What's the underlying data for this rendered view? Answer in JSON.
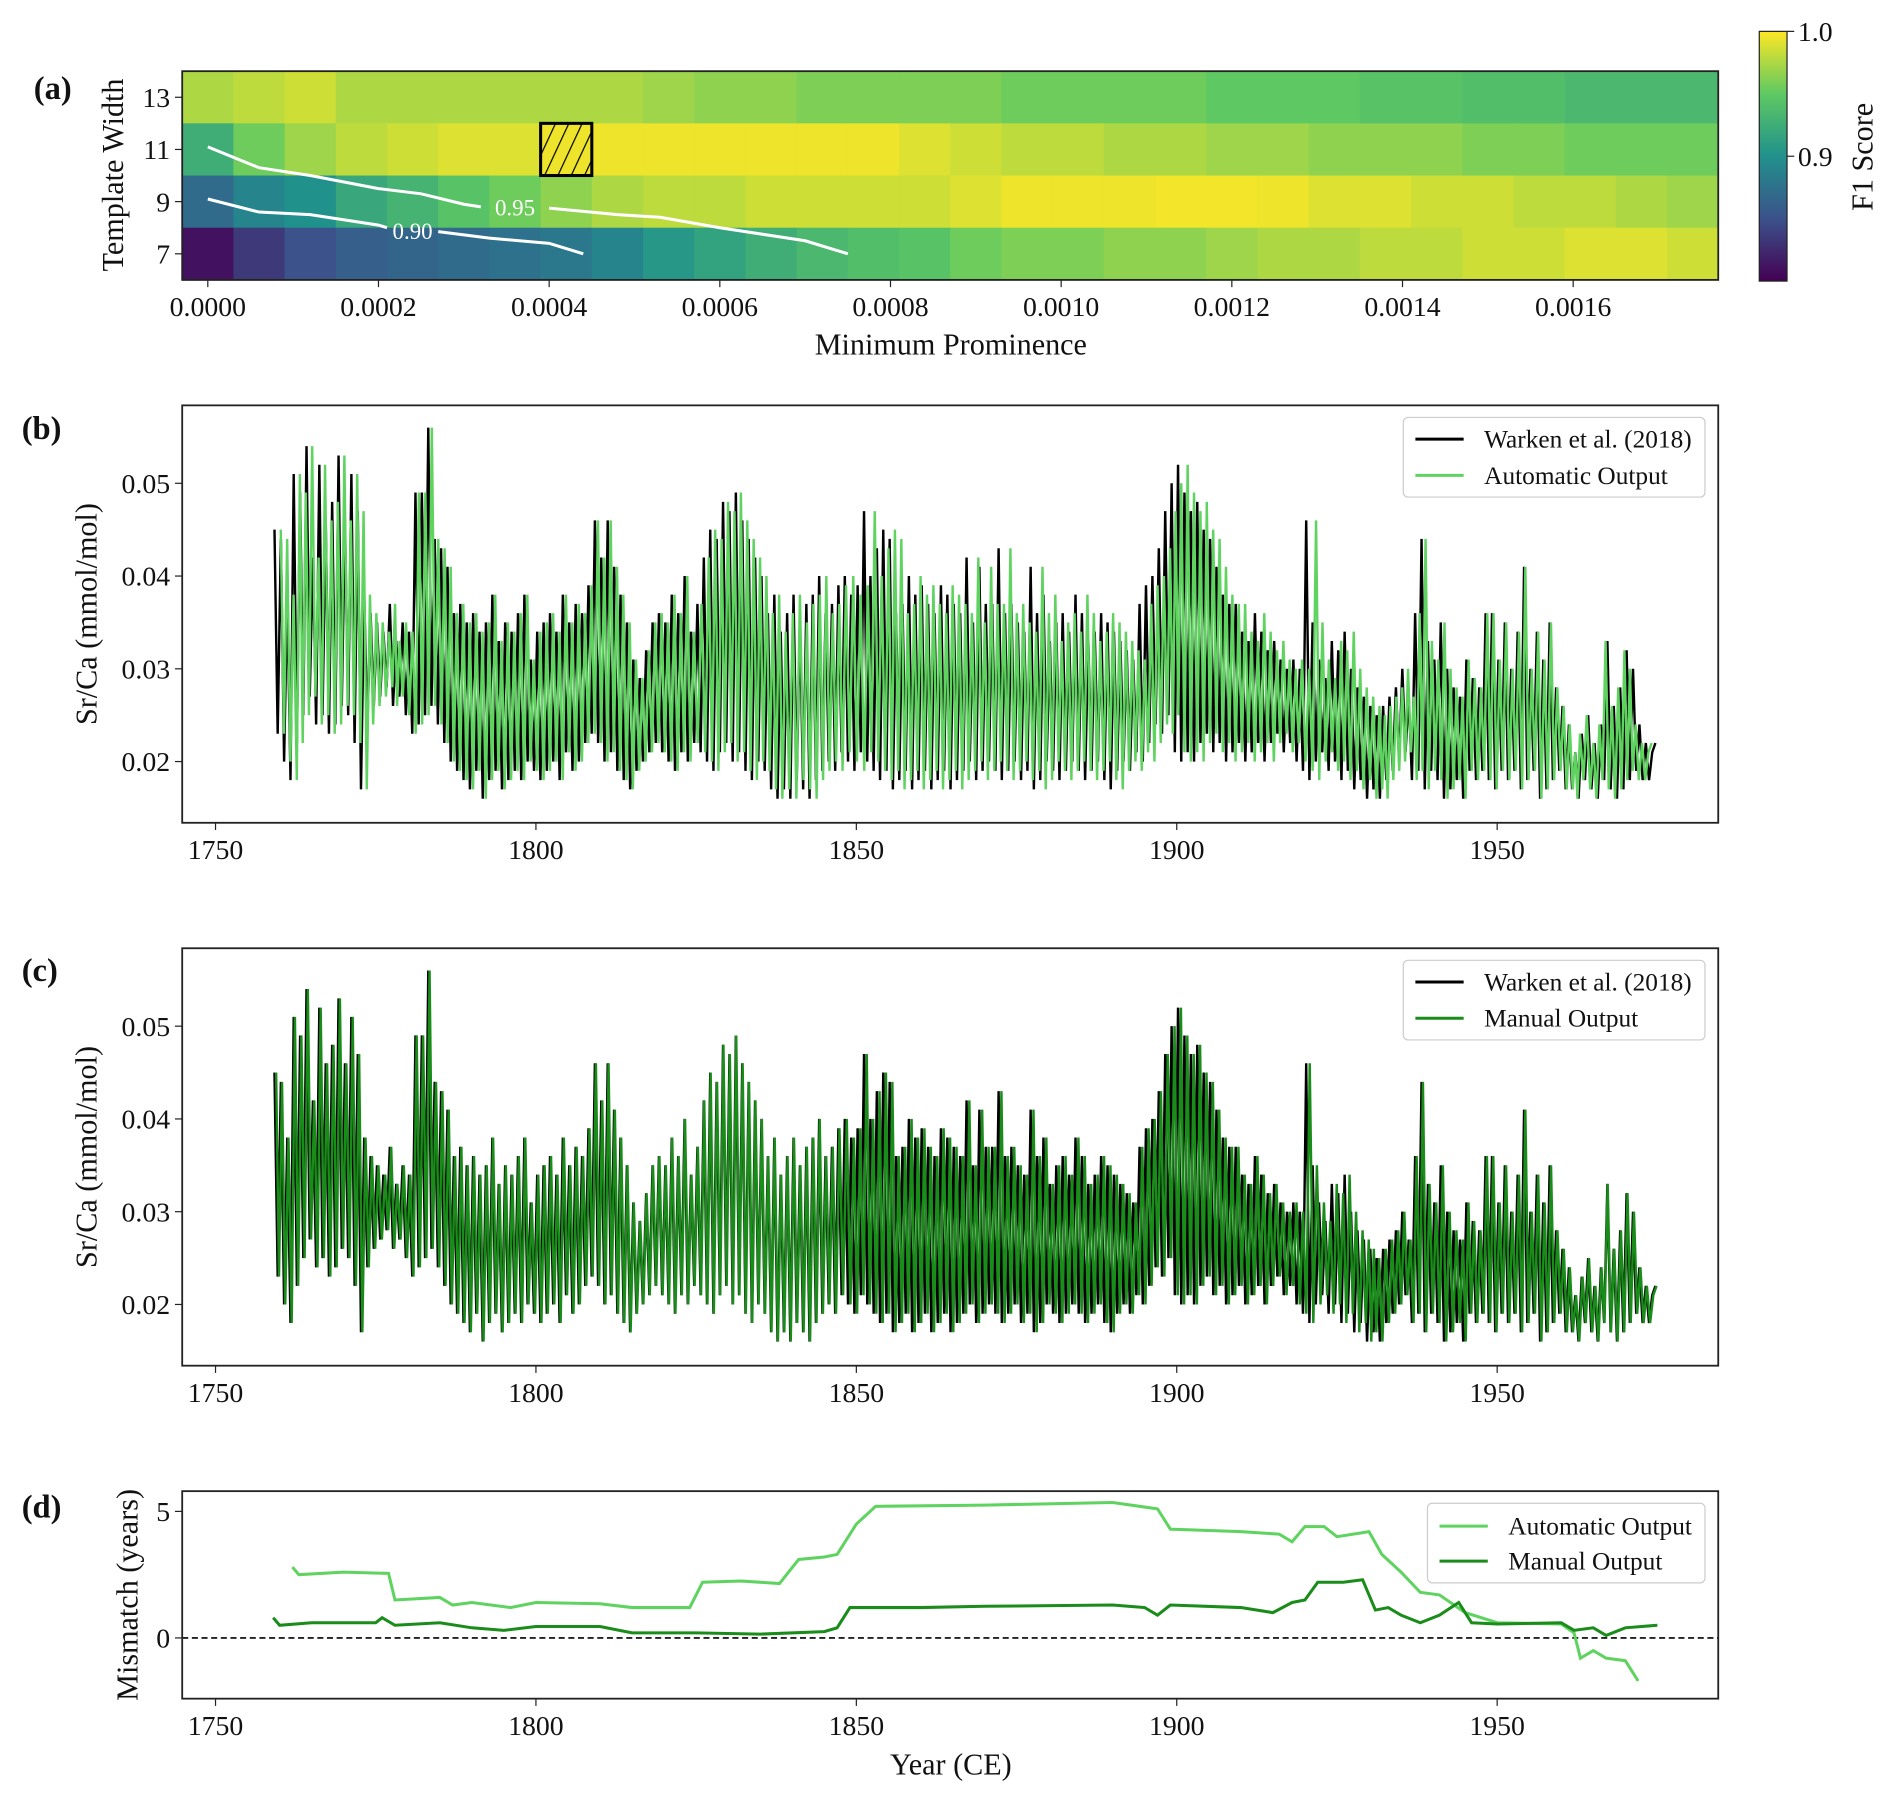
{
  "chart_data": [
    {
      "panel": "(a)",
      "type": "heatmap",
      "xlabel": "Minimum Prominence",
      "ylabel": "Template Width",
      "colorbar_label": "F1 Score",
      "colorbar_ticks": [
        "0.9",
        "1.0"
      ],
      "colorbar_tick_values": [
        0.9,
        1.0
      ],
      "color_range": [
        0.8,
        1.0
      ],
      "colormap": "viridis",
      "x_step": 6e-05,
      "xlim": [
        -3e-05,
        0.00177
      ],
      "ylim": [
        6,
        14
      ],
      "xticks": [
        0,
        0.0002,
        0.0004,
        0.0006,
        0.0008,
        0.001,
        0.0012,
        0.0014,
        0.0016
      ],
      "xtick_labels": [
        "0.0000",
        "0.0002",
        "0.0004",
        "0.0006",
        "0.0008",
        "0.0010",
        "0.0012",
        "0.0014",
        "0.0016"
      ],
      "rows": [
        13,
        11,
        9,
        7
      ],
      "ytick_labels": [
        "13",
        "11",
        "9",
        "7"
      ],
      "values": [
        [
          0.975,
          0.98,
          0.985,
          0.975,
          0.975,
          0.975,
          0.975,
          0.975,
          0.975,
          0.97,
          0.965,
          0.965,
          0.96,
          0.96,
          0.96,
          0.96,
          0.955,
          0.955,
          0.955,
          0.955,
          0.95,
          0.95,
          0.95,
          0.945,
          0.945,
          0.94,
          0.94,
          0.935,
          0.935,
          0.935
        ],
        [
          0.925,
          0.955,
          0.97,
          0.98,
          0.985,
          0.99,
          0.99,
          0.995,
          0.995,
          0.995,
          0.995,
          0.995,
          0.995,
          0.995,
          0.99,
          0.985,
          0.98,
          0.98,
          0.975,
          0.975,
          0.97,
          0.97,
          0.965,
          0.965,
          0.965,
          0.96,
          0.96,
          0.955,
          0.955,
          0.955
        ],
        [
          0.87,
          0.89,
          0.9,
          0.92,
          0.93,
          0.945,
          0.955,
          0.965,
          0.975,
          0.98,
          0.98,
          0.985,
          0.985,
          0.985,
          0.985,
          0.99,
          0.995,
          0.995,
          0.995,
          0.997,
          0.997,
          0.995,
          0.99,
          0.99,
          0.985,
          0.985,
          0.98,
          0.98,
          0.975,
          0.97
        ],
        [
          0.81,
          0.835,
          0.85,
          0.86,
          0.865,
          0.87,
          0.875,
          0.88,
          0.89,
          0.905,
          0.915,
          0.925,
          0.935,
          0.94,
          0.945,
          0.955,
          0.96,
          0.96,
          0.965,
          0.965,
          0.97,
          0.975,
          0.975,
          0.98,
          0.98,
          0.985,
          0.985,
          0.99,
          0.99,
          0.985
        ]
      ],
      "highlight_cell": {
        "x": 0.00042,
        "y": 11
      },
      "contours": [
        {
          "level": 0.95,
          "label": "0.95",
          "label_at": [
            0.00036,
            8.8
          ],
          "segments": [
            [
              [
                0,
                11.1
              ],
              [
                6e-05,
                10.3
              ],
              [
                0.00012,
                10.0
              ],
              [
                0.0002,
                9.5
              ],
              [
                0.00025,
                9.3
              ],
              [
                0.0003,
                8.9
              ],
              [
                0.00032,
                8.8
              ]
            ],
            [
              [
                0.0004,
                8.75
              ],
              [
                0.00048,
                8.5
              ],
              [
                0.00053,
                8.4
              ],
              [
                0.0006,
                8.0
              ],
              [
                0.0007,
                7.5
              ],
              [
                0.00075,
                7.0
              ]
            ]
          ]
        },
        {
          "level": 0.9,
          "label": "0.90",
          "label_at": [
            0.00024,
            7.9
          ],
          "segments": [
            [
              [
                0,
                9.1
              ],
              [
                6e-05,
                8.6
              ],
              [
                0.00012,
                8.5
              ],
              [
                0.0002,
                8.1
              ],
              [
                0.00021,
                8.0
              ]
            ],
            [
              [
                0.00027,
                7.85
              ],
              [
                0.00033,
                7.6
              ],
              [
                0.0004,
                7.4
              ],
              [
                0.00044,
                7.0
              ]
            ]
          ]
        }
      ]
    },
    {
      "panel": "(b)",
      "type": "line",
      "ylabel": "Sr/Ca (mmol/mol)",
      "xlim": [
        1744.8,
        1984.5
      ],
      "ylim": [
        0.0134,
        0.0584
      ],
      "xticks": [
        1750,
        1800,
        1850,
        1900,
        1950
      ],
      "xtick_labels": [
        "1750",
        "1800",
        "1850",
        "1900",
        "1950"
      ],
      "yticks": [
        0.02,
        0.03,
        0.04,
        0.05
      ],
      "ytick_labels": [
        "0.02",
        "0.03",
        "0.04",
        "0.05"
      ],
      "legend": [
        "Warken et al. (2018)",
        "Automatic Output"
      ],
      "legend_placement": "top-right",
      "colors": {
        "reference": "#000000",
        "output": "#5fd35f"
      },
      "note": "output series = reference series shifted in time by the mismatch of panel (d)"
    },
    {
      "panel": "(c)",
      "type": "line",
      "ylabel": "Sr/Ca (mmol/mol)",
      "xlim": [
        1744.8,
        1984.5
      ],
      "ylim": [
        0.0134,
        0.0584
      ],
      "xticks": [
        1750,
        1800,
        1850,
        1900,
        1950
      ],
      "xtick_labels": [
        "1750",
        "1800",
        "1850",
        "1900",
        "1950"
      ],
      "yticks": [
        0.02,
        0.03,
        0.04,
        0.05
      ],
      "ytick_labels": [
        "0.02",
        "0.03",
        "0.04",
        "0.05"
      ],
      "legend": [
        "Warken et al. (2018)",
        "Manual Output"
      ],
      "legend_placement": "top-right",
      "colors": {
        "reference": "#000000",
        "output": "#1a8c1a"
      }
    },
    {
      "panel": "(d)",
      "type": "line",
      "xlabel": "Year (CE)",
      "ylabel": "Mismatch (years)",
      "xlim": [
        1744.8,
        1984.5
      ],
      "ylim": [
        -2.4,
        5.8
      ],
      "xticks": [
        1750,
        1800,
        1850,
        1900,
        1950
      ],
      "xtick_labels": [
        "1750",
        "1800",
        "1850",
        "1900",
        "1950"
      ],
      "yticks": [
        0,
        5
      ],
      "ytick_labels": [
        "0",
        "5"
      ],
      "legend": [
        "Automatic Output",
        "Manual Output"
      ],
      "legend_placement": "top-right",
      "reference_line": 0,
      "series": [
        {
          "name": "Automatic Output",
          "color": "#5fd35f",
          "points": [
            [
              1762,
              2.8
            ],
            [
              1763,
              2.5
            ],
            [
              1770,
              2.6
            ],
            [
              1777,
              2.55
            ],
            [
              1778,
              1.5
            ],
            [
              1785,
              1.6
            ],
            [
              1787,
              1.3
            ],
            [
              1790,
              1.4
            ],
            [
              1796,
              1.2
            ],
            [
              1800,
              1.4
            ],
            [
              1810,
              1.35
            ],
            [
              1815,
              1.2
            ],
            [
              1824,
              1.2
            ],
            [
              1826,
              2.2
            ],
            [
              1832,
              2.25
            ],
            [
              1838,
              2.15
            ],
            [
              1841,
              3.1
            ],
            [
              1845,
              3.2
            ],
            [
              1847,
              3.3
            ],
            [
              1850,
              4.5
            ],
            [
              1853,
              5.2
            ],
            [
              1870,
              5.25
            ],
            [
              1890,
              5.35
            ],
            [
              1897,
              5.1
            ],
            [
              1899,
              4.3
            ],
            [
              1910,
              4.2
            ],
            [
              1916,
              4.1
            ],
            [
              1918,
              3.8
            ],
            [
              1920,
              4.4
            ],
            [
              1923,
              4.4
            ],
            [
              1925,
              4.0
            ],
            [
              1930,
              4.2
            ],
            [
              1932,
              3.3
            ],
            [
              1935,
              2.6
            ],
            [
              1938,
              1.8
            ],
            [
              1941,
              1.7
            ],
            [
              1945,
              1.0
            ],
            [
              1950,
              0.6
            ],
            [
              1960,
              0.55
            ],
            [
              1962,
              0.2
            ],
            [
              1963,
              -0.8
            ],
            [
              1965,
              -0.5
            ],
            [
              1967,
              -0.8
            ],
            [
              1970,
              -0.9
            ],
            [
              1972,
              -1.7
            ]
          ]
        },
        {
          "name": "Manual Output",
          "color": "#1a8c1a",
          "points": [
            [
              1759,
              0.8
            ],
            [
              1760,
              0.5
            ],
            [
              1765,
              0.6
            ],
            [
              1775,
              0.6
            ],
            [
              1776,
              0.8
            ],
            [
              1778,
              0.5
            ],
            [
              1785,
              0.6
            ],
            [
              1790,
              0.4
            ],
            [
              1795,
              0.3
            ],
            [
              1800,
              0.45
            ],
            [
              1810,
              0.45
            ],
            [
              1815,
              0.2
            ],
            [
              1825,
              0.2
            ],
            [
              1835,
              0.15
            ],
            [
              1845,
              0.25
            ],
            [
              1847,
              0.4
            ],
            [
              1849,
              1.2
            ],
            [
              1860,
              1.2
            ],
            [
              1870,
              1.25
            ],
            [
              1890,
              1.3
            ],
            [
              1895,
              1.2
            ],
            [
              1897,
              0.9
            ],
            [
              1899,
              1.3
            ],
            [
              1910,
              1.2
            ],
            [
              1915,
              1.0
            ],
            [
              1918,
              1.4
            ],
            [
              1920,
              1.5
            ],
            [
              1922,
              2.2
            ],
            [
              1926,
              2.2
            ],
            [
              1929,
              2.3
            ],
            [
              1931,
              1.1
            ],
            [
              1933,
              1.2
            ],
            [
              1935,
              0.9
            ],
            [
              1938,
              0.6
            ],
            [
              1941,
              0.9
            ],
            [
              1944,
              1.4
            ],
            [
              1946,
              0.6
            ],
            [
              1950,
              0.55
            ],
            [
              1960,
              0.6
            ],
            [
              1962,
              0.3
            ],
            [
              1965,
              0.4
            ],
            [
              1967,
              0.1
            ],
            [
              1970,
              0.4
            ],
            [
              1975,
              0.5
            ]
          ]
        }
      ]
    }
  ],
  "reference_series": {
    "name": "Warken et al. (2018)",
    "start_year": 1759,
    "annual_peaks": [
      0.045,
      0.044,
      0.038,
      0.051,
      0.049,
      0.054,
      0.042,
      0.052,
      0.046,
      0.048,
      0.053,
      0.046,
      0.051,
      0.047,
      0.038,
      0.036,
      0.035,
      0.034,
      0.037,
      0.033,
      0.035,
      0.034,
      0.049,
      0.049,
      0.056,
      0.044,
      0.043,
      0.041,
      0.036,
      0.037,
      0.035,
      0.036,
      0.034,
      0.035,
      0.038,
      0.033,
      0.035,
      0.034,
      0.036,
      0.038,
      0.031,
      0.034,
      0.035,
      0.036,
      0.034,
      0.038,
      0.035,
      0.037,
      0.036,
      0.039,
      0.046,
      0.042,
      0.046,
      0.041,
      0.038,
      0.035,
      0.031,
      0.029,
      0.032,
      0.035,
      0.036,
      0.035,
      0.038,
      0.036,
      0.04,
      0.034,
      0.037,
      0.042,
      0.045,
      0.044,
      0.048,
      0.047,
      0.049,
      0.046,
      0.044,
      0.042,
      0.04,
      0.036,
      0.038,
      0.034,
      0.036,
      0.038,
      0.035,
      0.037,
      0.038,
      0.04,
      0.036,
      0.037,
      0.039,
      0.04,
      0.038,
      0.039,
      0.047,
      0.04,
      0.043,
      0.045,
      0.044,
      0.036,
      0.037,
      0.04,
      0.038,
      0.039,
      0.037,
      0.036,
      0.039,
      0.038,
      0.037,
      0.036,
      0.042,
      0.035,
      0.041,
      0.037,
      0.037,
      0.043,
      0.036,
      0.037,
      0.035,
      0.034,
      0.041,
      0.036,
      0.038,
      0.033,
      0.035,
      0.036,
      0.034,
      0.038,
      0.036,
      0.033,
      0.034,
      0.036,
      0.035,
      0.034,
      0.033,
      0.032,
      0.031,
      0.037,
      0.039,
      0.04,
      0.043,
      0.047,
      0.05,
      0.052,
      0.049,
      0.047,
      0.048,
      0.045,
      0.044,
      0.041,
      0.038,
      0.037,
      0.037,
      0.034,
      0.033,
      0.036,
      0.034,
      0.032,
      0.033,
      0.031,
      0.03,
      0.031,
      0.03,
      0.046,
      0.035,
      0.031,
      0.029,
      0.033,
      0.032,
      0.034,
      0.03,
      0.028,
      0.027,
      0.026,
      0.025,
      0.026,
      0.027,
      0.028,
      0.03,
      0.027,
      0.036,
      0.044,
      0.033,
      0.031,
      0.035,
      0.03,
      0.028,
      0.027,
      0.031,
      0.029,
      0.028,
      0.036,
      0.036,
      0.031,
      0.035,
      0.03,
      0.034,
      0.041,
      0.03,
      0.034,
      0.031,
      0.035,
      0.028,
      0.026,
      0.024,
      0.021,
      0.023,
      0.025,
      0.022,
      0.024,
      0.033,
      0.026,
      0.028,
      0.032,
      0.03,
      0.024,
      0.022,
      0.021
    ],
    "annual_troughs": [
      0.023,
      0.02,
      0.018,
      0.022,
      0.025,
      0.027,
      0.024,
      0.025,
      0.023,
      0.024,
      0.026,
      0.025,
      0.022,
      0.017,
      0.024,
      0.026,
      0.027,
      0.028,
      0.026,
      0.027,
      0.025,
      0.023,
      0.024,
      0.025,
      0.026,
      0.024,
      0.022,
      0.02,
      0.019,
      0.018,
      0.017,
      0.019,
      0.016,
      0.018,
      0.019,
      0.017,
      0.018,
      0.019,
      0.018,
      0.02,
      0.019,
      0.018,
      0.019,
      0.02,
      0.018,
      0.021,
      0.019,
      0.02,
      0.022,
      0.023,
      0.022,
      0.02,
      0.021,
      0.019,
      0.018,
      0.017,
      0.019,
      0.02,
      0.021,
      0.022,
      0.021,
      0.02,
      0.019,
      0.021,
      0.02,
      0.022,
      0.021,
      0.02,
      0.019,
      0.021,
      0.022,
      0.02,
      0.021,
      0.019,
      0.018,
      0.02,
      0.019,
      0.017,
      0.016,
      0.017,
      0.016,
      0.018,
      0.017,
      0.016,
      0.018,
      0.019,
      0.02,
      0.019,
      0.021,
      0.02,
      0.019,
      0.021,
      0.02,
      0.019,
      0.018,
      0.019,
      0.017,
      0.018,
      0.019,
      0.017,
      0.018,
      0.019,
      0.017,
      0.018,
      0.019,
      0.017,
      0.018,
      0.019,
      0.02,
      0.018,
      0.019,
      0.02,
      0.019,
      0.018,
      0.019,
      0.02,
      0.018,
      0.019,
      0.017,
      0.018,
      0.02,
      0.019,
      0.018,
      0.019,
      0.02,
      0.019,
      0.018,
      0.019,
      0.02,
      0.018,
      0.017,
      0.019,
      0.02,
      0.019,
      0.021,
      0.02,
      0.022,
      0.024,
      0.023,
      0.025,
      0.021,
      0.02,
      0.021,
      0.02,
      0.022,
      0.023,
      0.021,
      0.022,
      0.02,
      0.021,
      0.022,
      0.02,
      0.021,
      0.022,
      0.02,
      0.022,
      0.023,
      0.021,
      0.022,
      0.02,
      0.019,
      0.018,
      0.02,
      0.021,
      0.019,
      0.02,
      0.018,
      0.019,
      0.017,
      0.018,
      0.016,
      0.017,
      0.016,
      0.018,
      0.019,
      0.02,
      0.021,
      0.018,
      0.019,
      0.017,
      0.019,
      0.018,
      0.016,
      0.017,
      0.018,
      0.016,
      0.019,
      0.018,
      0.019,
      0.018,
      0.017,
      0.019,
      0.018,
      0.019,
      0.017,
      0.018,
      0.019,
      0.016,
      0.017,
      0.018,
      0.019,
      0.017,
      0.017,
      0.016,
      0.018,
      0.017,
      0.016,
      0.018,
      0.017,
      0.016,
      0.017,
      0.018,
      0.019,
      0.018,
      0.018,
      0.022
    ]
  }
}
